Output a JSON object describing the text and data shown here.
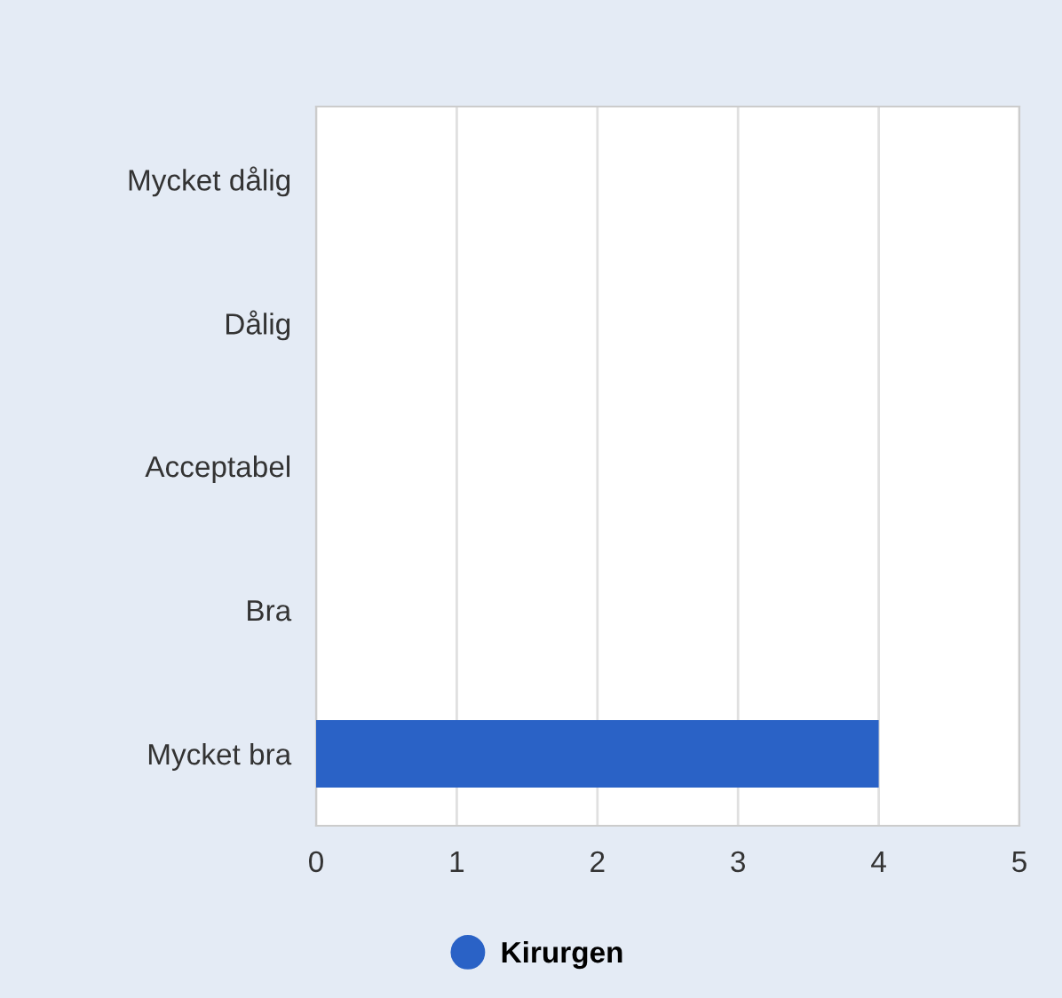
{
  "chart_data": {
    "type": "bar",
    "orientation": "horizontal",
    "categories": [
      "Mycket dålig",
      "Dålig",
      "Acceptabel",
      "Bra",
      "Mycket bra"
    ],
    "series": [
      {
        "name": "Kirurgen",
        "color": "#2a62c6",
        "values": [
          0,
          0,
          0,
          0,
          4
        ]
      }
    ],
    "xlim": [
      0,
      5
    ],
    "xticks": [
      0,
      1,
      2,
      3,
      4,
      5
    ],
    "grid": "x",
    "legend": "bottom"
  }
}
